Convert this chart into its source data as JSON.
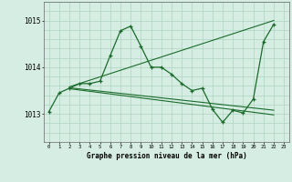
{
  "title": "Graphe pression niveau de la mer (hPa)",
  "ylim": [
    1012.4,
    1015.4
  ],
  "yticks": [
    1013,
    1014,
    1015
  ],
  "background_color": "#d6ede4",
  "grid_color": "#b0d4c0",
  "line_color": "#1a6b2a",
  "main_line": {
    "x": [
      0,
      1,
      2,
      3,
      4,
      5,
      6,
      7,
      8,
      9,
      10,
      11,
      12,
      13,
      14,
      15,
      16,
      17,
      18,
      19,
      20,
      21,
      22
    ],
    "y": [
      1013.05,
      1013.45,
      1013.55,
      1013.65,
      1013.65,
      1013.7,
      1014.25,
      1014.78,
      1014.88,
      1014.45,
      1014.0,
      1014.0,
      1013.85,
      1013.65,
      1013.5,
      1013.55,
      1013.1,
      1012.82,
      1013.08,
      1013.02,
      1013.32,
      1014.55,
      1014.92
    ]
  },
  "trend_line1": {
    "x": [
      2,
      22
    ],
    "y": [
      1013.58,
      1015.0
    ]
  },
  "trend_line2": {
    "x": [
      2,
      22
    ],
    "y": [
      1013.56,
      1013.08
    ]
  },
  "trend_line3": {
    "x": [
      2,
      22
    ],
    "y": [
      1013.54,
      1012.98
    ]
  }
}
